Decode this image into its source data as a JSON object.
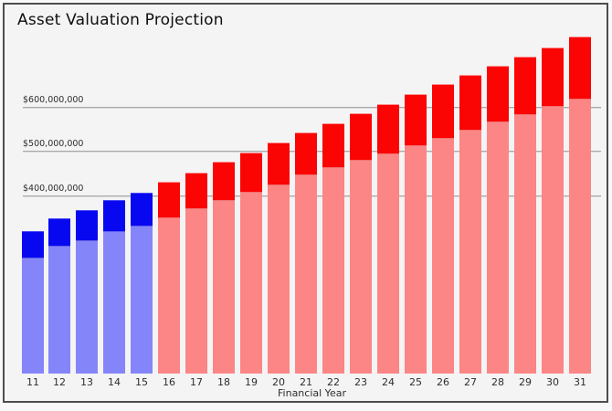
{
  "window": {
    "background": "#f4f4f4",
    "border_color": "#4d4d4d",
    "page_background": "#f8f8f8"
  },
  "chart_data": {
    "type": "bar",
    "stacked": true,
    "title": "Asset Valuation Projection",
    "xlabel": "Financial Year",
    "ylabel": "",
    "units": "USD",
    "grid": true,
    "legend": false,
    "ylim_millions": [
      0,
      775
    ],
    "y_ticks": [
      {
        "label": "$400,000,000",
        "value_millions": 400
      },
      {
        "label": "$500,000,000",
        "value_millions": 500
      },
      {
        "label": "$600,000,000",
        "value_millions": 600
      }
    ],
    "palette": {
      "blue": {
        "base": "#8585fa",
        "top": "#0808f0",
        "divider": "#5d5de8",
        "cap": "#4a4af5"
      },
      "red": {
        "base": "#fc8585",
        "top": "#fb0404",
        "divider": "#f17070",
        "cap": "#fc9090"
      }
    },
    "bars": [
      {
        "label": "11",
        "group": "blue",
        "base_millions": 260,
        "top_millions": 59,
        "total_millions": 319
      },
      {
        "label": "12",
        "group": "blue",
        "base_millions": 286,
        "top_millions": 62,
        "total_millions": 348
      },
      {
        "label": "13",
        "group": "blue",
        "base_millions": 300,
        "top_millions": 68,
        "total_millions": 368
      },
      {
        "label": "14",
        "group": "blue",
        "base_millions": 320,
        "top_millions": 69,
        "total_millions": 389
      },
      {
        "label": "15",
        "group": "blue",
        "base_millions": 333,
        "top_millions": 74,
        "total_millions": 407
      },
      {
        "label": "16",
        "group": "red",
        "base_millions": 352,
        "top_millions": 79,
        "total_millions": 431
      },
      {
        "label": "17",
        "group": "red",
        "base_millions": 371,
        "top_millions": 81,
        "total_millions": 452
      },
      {
        "label": "18",
        "group": "red",
        "base_millions": 389,
        "top_millions": 86,
        "total_millions": 475
      },
      {
        "label": "19",
        "group": "red",
        "base_millions": 408,
        "top_millions": 89,
        "total_millions": 497
      },
      {
        "label": "20",
        "group": "red",
        "base_millions": 426,
        "top_millions": 94,
        "total_millions": 520
      },
      {
        "label": "21",
        "group": "red",
        "base_millions": 446,
        "top_millions": 95,
        "total_millions": 541
      },
      {
        "label": "22",
        "group": "red",
        "base_millions": 463,
        "top_millions": 99,
        "total_millions": 562
      },
      {
        "label": "23",
        "group": "red",
        "base_millions": 480,
        "top_millions": 105,
        "total_millions": 585
      },
      {
        "label": "24",
        "group": "red",
        "base_millions": 496,
        "top_millions": 110,
        "total_millions": 606
      },
      {
        "label": "25",
        "group": "red",
        "base_millions": 514,
        "top_millions": 114,
        "total_millions": 628
      },
      {
        "label": "26",
        "group": "red",
        "base_millions": 529,
        "top_millions": 121,
        "total_millions": 650
      },
      {
        "label": "27",
        "group": "red",
        "base_millions": 548,
        "top_millions": 123,
        "total_millions": 671
      },
      {
        "label": "28",
        "group": "red",
        "base_millions": 565,
        "top_millions": 126,
        "total_millions": 691
      },
      {
        "label": "29",
        "group": "red",
        "base_millions": 582,
        "top_millions": 130,
        "total_millions": 712
      },
      {
        "label": "30",
        "group": "red",
        "base_millions": 600,
        "top_millions": 132,
        "total_millions": 732
      },
      {
        "label": "31",
        "group": "red",
        "base_millions": 617,
        "top_millions": 139,
        "total_millions": 756
      }
    ]
  }
}
